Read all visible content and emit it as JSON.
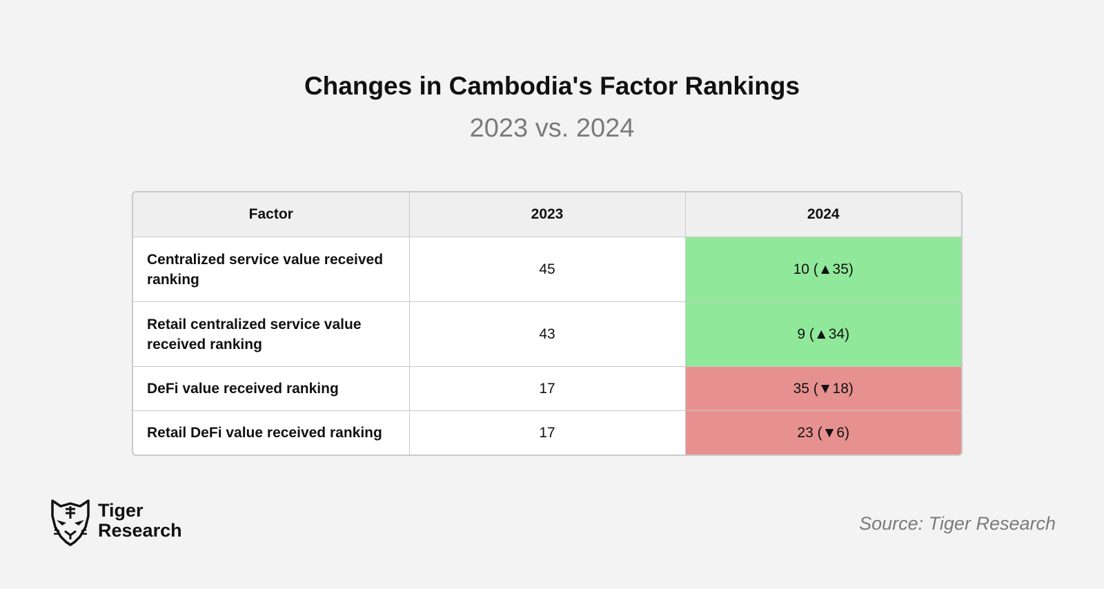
{
  "chart_data": {
    "type": "table",
    "title": "Changes in Cambodia's Factor Rankings",
    "subtitle": "2023 vs. 2024",
    "columns": [
      "Factor",
      "2023",
      "2024"
    ],
    "rows": [
      {
        "factor": "Centralized service value received ranking",
        "y2023": "45",
        "y2024": "10 (▲35)",
        "change": "up"
      },
      {
        "factor": "Retail centralized service value received ranking",
        "y2023": "43",
        "y2024": "9 (▲34)",
        "change": "up"
      },
      {
        "factor": "DeFi value received ranking",
        "y2023": "17",
        "y2024": "35 (▼18)",
        "change": "down"
      },
      {
        "factor": "Retail DeFi value received ranking",
        "y2023": "17",
        "y2024": "23 (▼6)",
        "change": "down"
      }
    ]
  },
  "colors": {
    "improved": "#90e89a",
    "declined": "#e69190",
    "header_bg": "#efefef",
    "background": "#f3f3f3"
  },
  "brand": {
    "line1": "Tiger",
    "line2": "Research",
    "icon": "tiger-head-icon"
  },
  "source": "Source: Tiger Research"
}
